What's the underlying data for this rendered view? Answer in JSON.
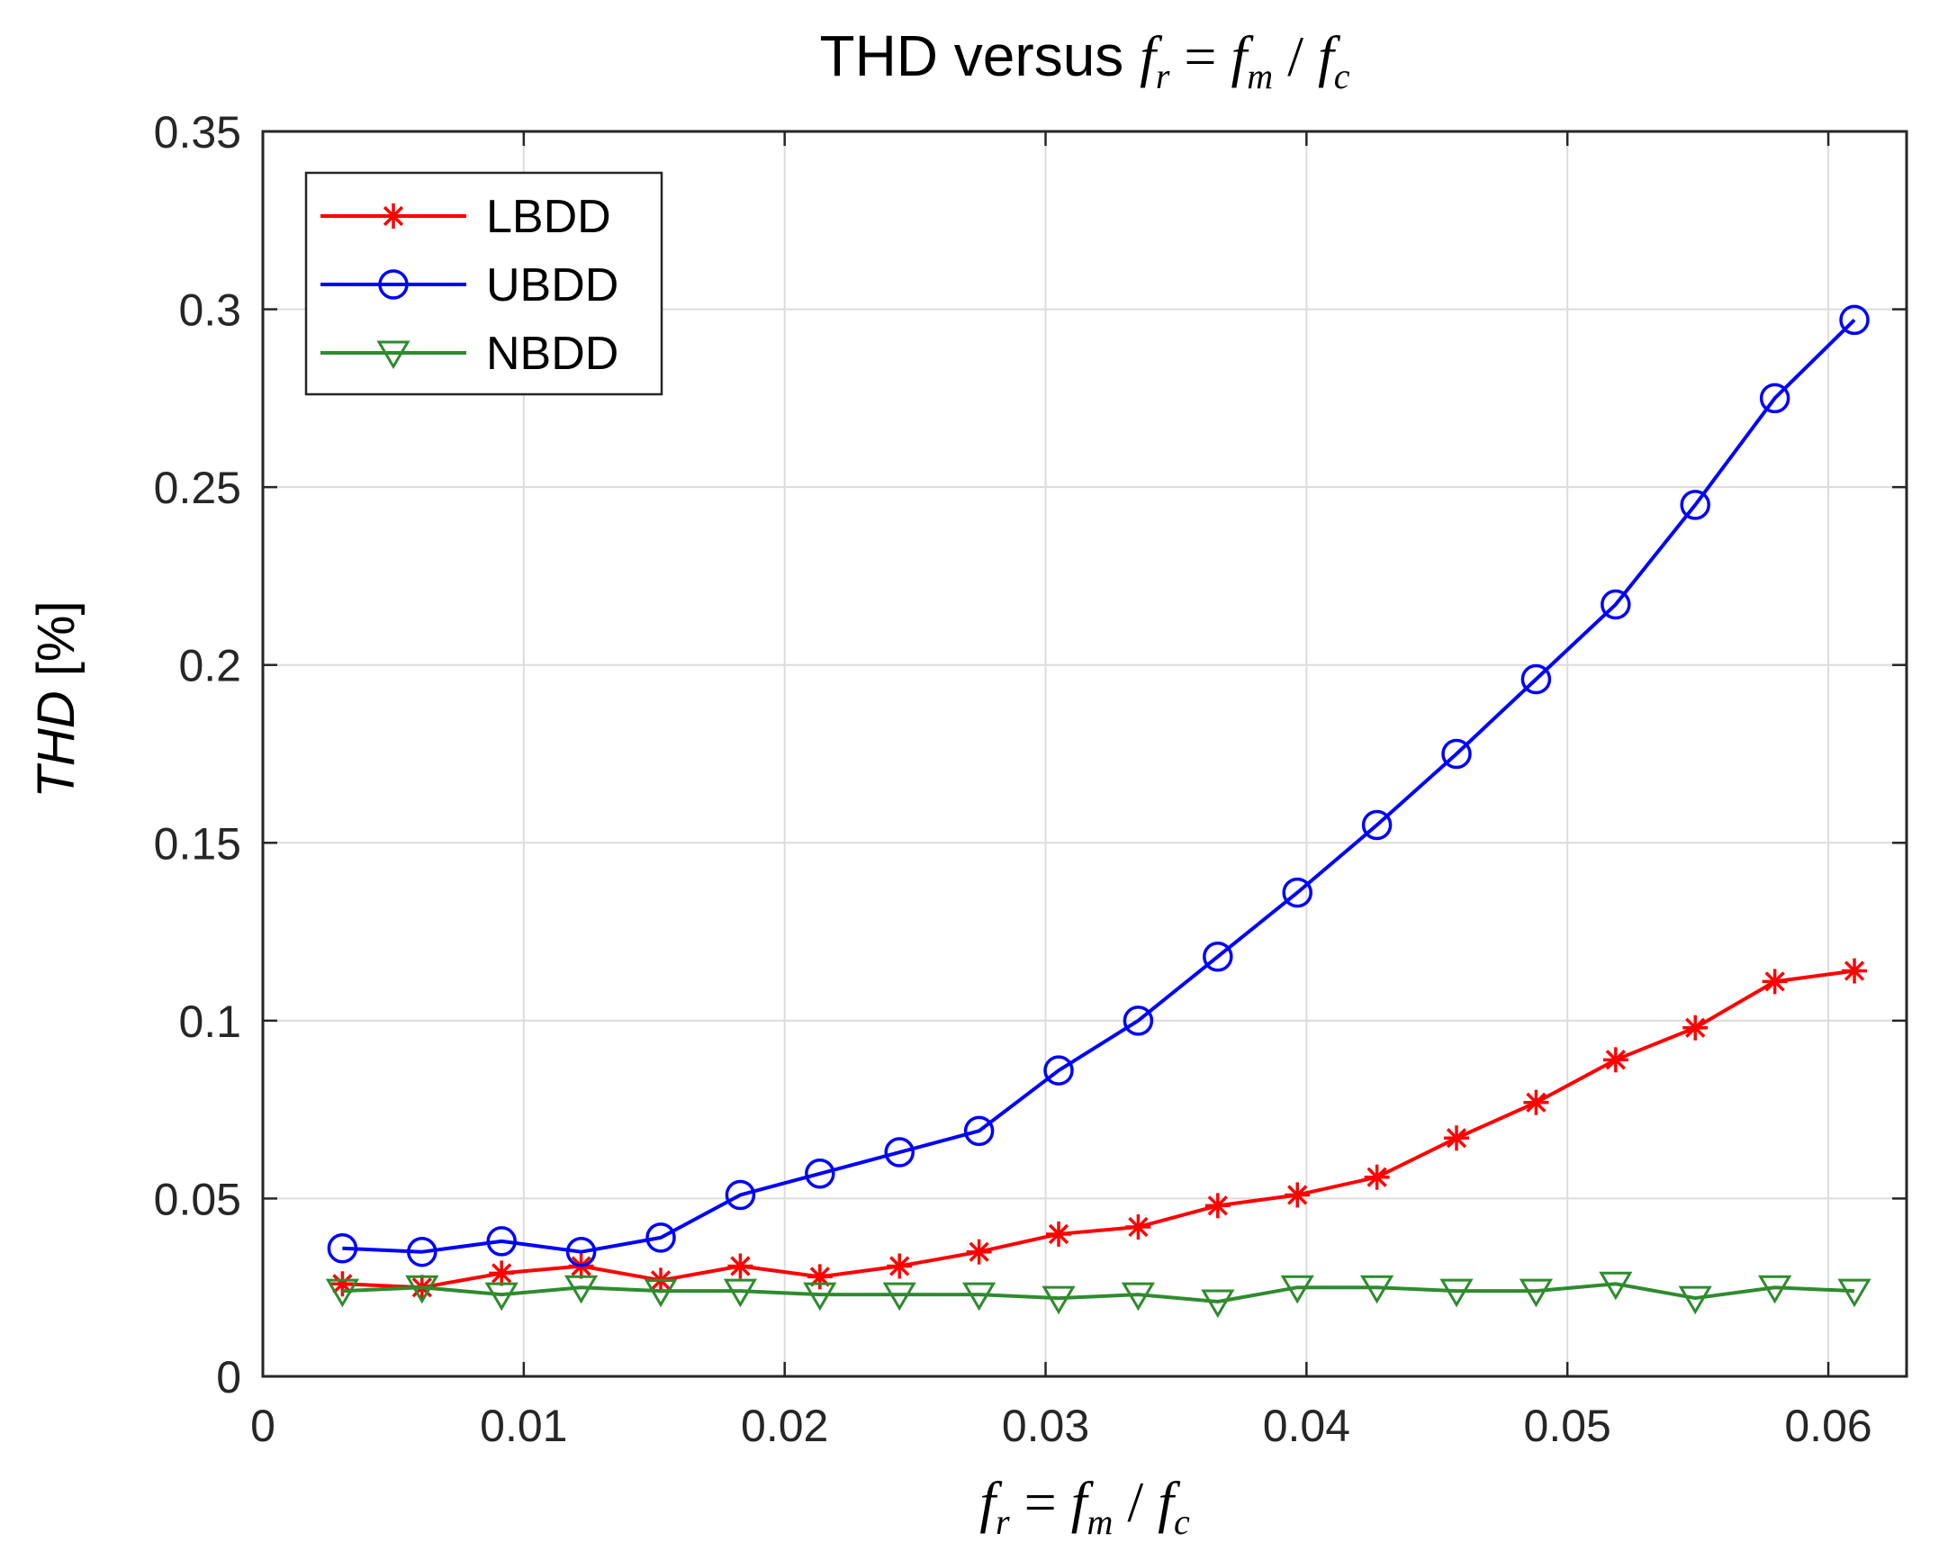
{
  "chart_data": {
    "type": "line",
    "title": {
      "prefix": "THD versus ",
      "math": {
        "f1": "f",
        "s1": "r",
        "eq": " = ",
        "f2": "f",
        "s2": "m",
        "slash": " / ",
        "f3": "f",
        "s3": "c"
      }
    },
    "xlabel": {
      "math": {
        "f1": "f",
        "s1": "r",
        "eq": " = ",
        "f2": "f",
        "s2": "m",
        "slash": " / ",
        "f3": "f",
        "s3": "c"
      }
    },
    "ylabel": {
      "italic": "THD",
      "rest": " [%]"
    },
    "xlim": [
      0,
      0.063
    ],
    "ylim": [
      0,
      0.35
    ],
    "xticks": [
      0,
      0.01,
      0.02,
      0.03,
      0.04,
      0.05,
      0.06
    ],
    "xtick_labels": [
      "0",
      "0.01",
      "0.02",
      "0.03",
      "0.04",
      "0.05",
      "0.06"
    ],
    "yticks": [
      0,
      0.05,
      0.1,
      0.15,
      0.2,
      0.25,
      0.3,
      0.35
    ],
    "ytick_labels": [
      "0",
      "0.05",
      "0.1",
      "0.15",
      "0.2",
      "0.25",
      "0.3",
      "0.35"
    ],
    "grid": true,
    "legend_position": "top-left",
    "x": [
      0.00305,
      0.0061,
      0.00915,
      0.0122,
      0.01525,
      0.0183,
      0.02135,
      0.0244,
      0.02745,
      0.0305,
      0.03355,
      0.0366,
      0.03965,
      0.0427,
      0.04575,
      0.0488,
      0.05185,
      0.0549,
      0.05795,
      0.061
    ],
    "series": [
      {
        "name": "LBDD",
        "color": "#ff0000",
        "marker": "asterisk",
        "values": [
          0.026,
          0.025,
          0.029,
          0.031,
          0.027,
          0.031,
          0.028,
          0.031,
          0.035,
          0.04,
          0.042,
          0.048,
          0.051,
          0.056,
          0.067,
          0.077,
          0.089,
          0.098,
          0.111,
          0.114
        ]
      },
      {
        "name": "UBDD",
        "color": "#0000ff",
        "marker": "circle",
        "values": [
          0.036,
          0.035,
          0.038,
          0.035,
          0.039,
          0.051,
          0.057,
          0.063,
          0.069,
          0.086,
          0.1,
          0.118,
          0.136,
          0.155,
          0.175,
          0.196,
          0.217,
          0.245,
          0.275,
          0.297
        ]
      },
      {
        "name": "NBDD",
        "color": "#2e8b2e",
        "marker": "triangle-down",
        "values": [
          0.024,
          0.025,
          0.023,
          0.025,
          0.024,
          0.024,
          0.023,
          0.023,
          0.023,
          0.022,
          0.023,
          0.021,
          0.025,
          0.025,
          0.024,
          0.024,
          0.026,
          0.022,
          0.025,
          0.024
        ]
      }
    ]
  }
}
